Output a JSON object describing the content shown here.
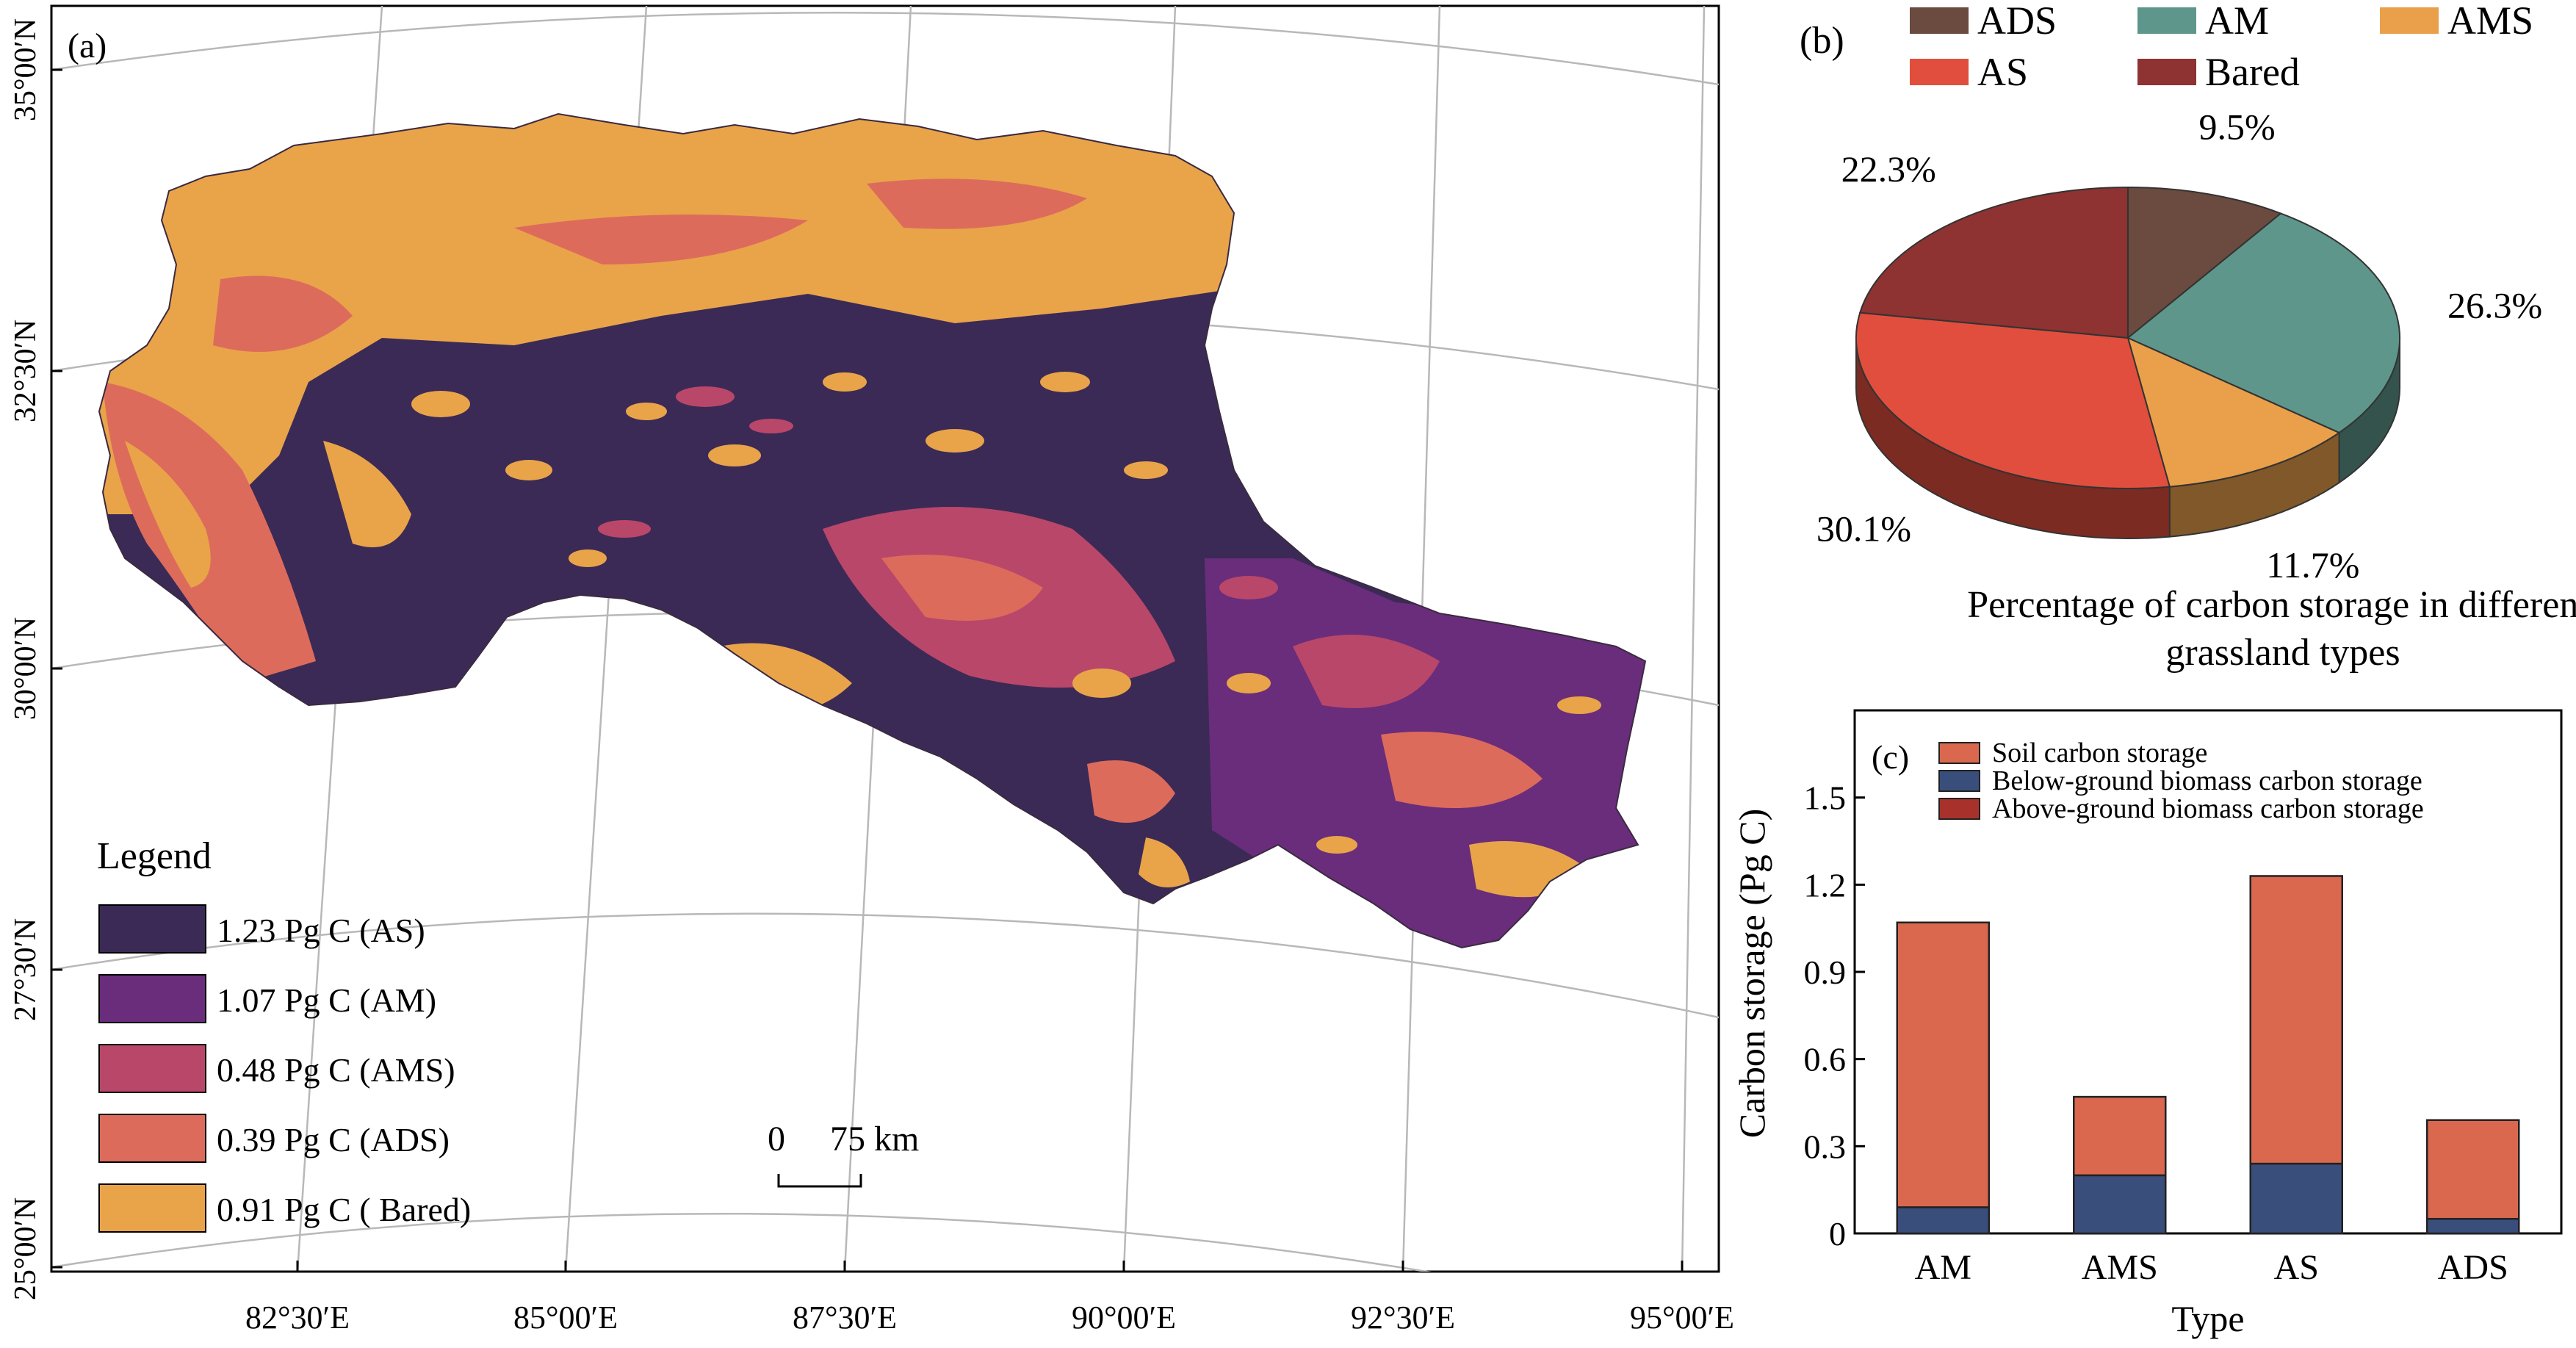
{
  "panel_a": {
    "label": "(a)",
    "lat_labels": [
      "35°00′N",
      "32°30′N",
      "30°00′N",
      "27°30′N",
      "25°00′N"
    ],
    "lon_labels": [
      "82°30′E",
      "85°00′E",
      "87°30′E",
      "90°00′E",
      "92°30′E",
      "95°00′E"
    ],
    "legend_title": "Legend",
    "legend": [
      {
        "label": "1.23 Pg C (AS)",
        "color": "#3b2a56"
      },
      {
        "label": "1.07 Pg C (AM)",
        "color": "#6a2d7b"
      },
      {
        "label": "0.48 Pg C (AMS)",
        "color": "#b9476a"
      },
      {
        "label": "0.39 Pg C (ADS)",
        "color": "#dd6b5c"
      },
      {
        "label": "0.91 Pg C ( Bared)",
        "color": "#e9a44a"
      }
    ],
    "scale_zero": "0",
    "scale_text": "75 km"
  },
  "chart_data": [
    {
      "type": "pie",
      "panel_label": "(b)",
      "title": "Percentage of carbon storage in different grassland types",
      "legend": [
        "ADS",
        "AM",
        "AMS",
        "AS",
        "Bared"
      ],
      "legend_placement": "top",
      "slices": [
        {
          "name": "ADS",
          "value": 9.5,
          "label": "9.5%",
          "color": "#6b4a40"
        },
        {
          "name": "AM",
          "value": 26.3,
          "label": "26.3%",
          "color": "#5e968c"
        },
        {
          "name": "AMS",
          "value": 11.7,
          "label": "11.7%",
          "color": "#eaa04a"
        },
        {
          "name": "AS",
          "value": 30.1,
          "label": "30.1%",
          "color": "#e14e3e"
        },
        {
          "name": "Bared",
          "value": 22.3,
          "label": "22.3%",
          "color": "#8e3232"
        }
      ]
    },
    {
      "type": "bar",
      "stacked": true,
      "panel_label": "(c)",
      "categories": [
        "AM",
        "AMS",
        "AS",
        "ADS"
      ],
      "series": [
        {
          "name": "Soil carbon storage",
          "color": "#d9684f",
          "values": [
            0.98,
            0.27,
            0.99,
            0.34
          ]
        },
        {
          "name": "Below-ground biomass carbon storage",
          "color": "#3a4e7c",
          "values": [
            0.09,
            0.2,
            0.24,
            0.05
          ]
        },
        {
          "name": "Above-ground biomass carbon storage",
          "color": "#a8312b",
          "values": [
            0.0,
            0.0,
            0.0,
            0.0
          ]
        }
      ],
      "xlabel": "Type",
      "ylabel": "Carbon storage (Pg C)",
      "ylim": [
        0,
        1.8
      ],
      "yticks": [
        "0",
        "0.3",
        "0.6",
        "0.9",
        "1.2",
        "1.5"
      ],
      "legend_placement": "top-right",
      "grid": false
    }
  ]
}
